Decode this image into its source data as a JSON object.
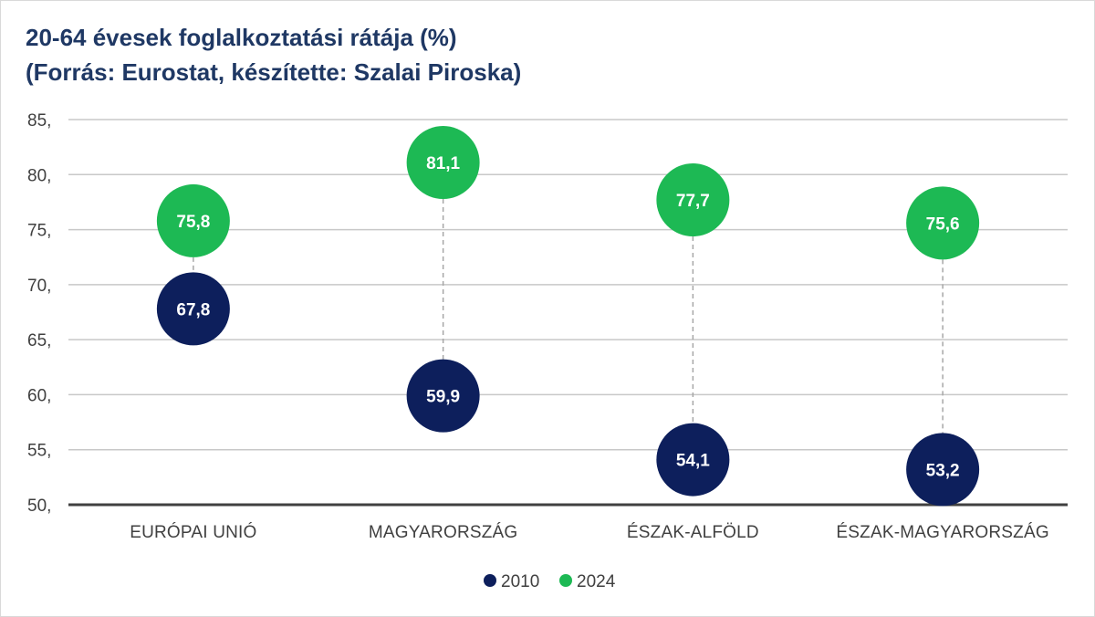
{
  "chart_data": {
    "type": "scatter",
    "title_line1": "20-64 évesek foglalkoztatási rátája (%)",
    "title_line2": "(Forrás: Eurostat, készítette: Szalai Piroska)",
    "categories": [
      "EURÓPAI UNIÓ",
      "MAGYARORSZÁG",
      "ÉSZAK-ALFÖLD",
      "ÉSZAK-MAGYARORSZÁG"
    ],
    "series": [
      {
        "name": "2010",
        "color": "#0d1f5c",
        "values": [
          67.8,
          59.9,
          54.1,
          53.2
        ],
        "labels": [
          "67,8",
          "59,9",
          "54,1",
          "53,2"
        ]
      },
      {
        "name": "2024",
        "color": "#1db954",
        "values": [
          75.8,
          81.1,
          77.7,
          75.6
        ],
        "labels": [
          "75,8",
          "81,1",
          "77,7",
          "75,6"
        ]
      }
    ],
    "ylim": [
      50,
      85
    ],
    "yticks": [
      50,
      55,
      60,
      65,
      70,
      75,
      80,
      85
    ],
    "ytick_labels": [
      "50,",
      "55,",
      "60,",
      "65,",
      "70,",
      "75,",
      "80,",
      "85,"
    ],
    "grid": true,
    "legend_position": "bottom-center",
    "connector_color": "#a6a6a6"
  }
}
